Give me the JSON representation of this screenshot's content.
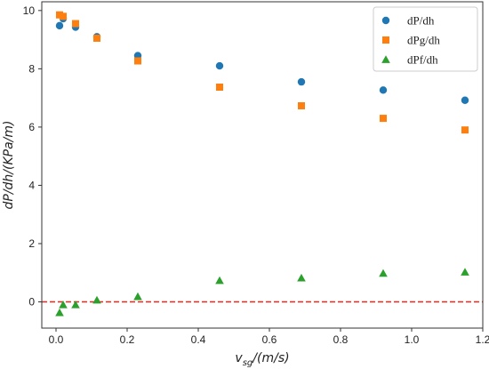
{
  "chart_data": {
    "type": "scatter",
    "title": "",
    "xlabel": "v_sg/(m/s)",
    "xlabel_main": "v",
    "xlabel_sub": "sg",
    "xlabel_rest": "/(m/s)",
    "ylabel": "dP/dh/(KPa/m)",
    "xlim": [
      -0.04,
      1.2
    ],
    "ylim": [
      -0.9,
      10.3
    ],
    "x_ticks": [
      0.0,
      0.2,
      0.4,
      0.6,
      0.8,
      1.0,
      1.2
    ],
    "x_tick_labels": [
      "0.0",
      "0.2",
      "0.4",
      "0.6",
      "0.8",
      "1.0",
      "1.2"
    ],
    "y_ticks": [
      0,
      2,
      4,
      6,
      8,
      10
    ],
    "y_tick_labels": [
      "0",
      "2",
      "4",
      "6",
      "8",
      "10"
    ],
    "grid": false,
    "legend_position": "top-right",
    "reference_line": {
      "y": 0,
      "style": "dashed",
      "color": "#e8281f"
    },
    "series": [
      {
        "name": "dP/dh",
        "marker": "circle",
        "color": "#1f77b4",
        "points": [
          {
            "x": 0.01,
            "y": 9.48
          },
          {
            "x": 0.02,
            "y": 9.72
          },
          {
            "x": 0.055,
            "y": 9.43
          },
          {
            "x": 0.115,
            "y": 9.1
          },
          {
            "x": 0.23,
            "y": 8.45
          },
          {
            "x": 0.46,
            "y": 8.1
          },
          {
            "x": 0.69,
            "y": 7.55
          },
          {
            "x": 0.92,
            "y": 7.27
          },
          {
            "x": 1.15,
            "y": 6.92
          }
        ]
      },
      {
        "name": "dPg/dh",
        "marker": "square",
        "color": "#ff7f0e",
        "points": [
          {
            "x": 0.01,
            "y": 9.85
          },
          {
            "x": 0.02,
            "y": 9.8
          },
          {
            "x": 0.055,
            "y": 9.55
          },
          {
            "x": 0.115,
            "y": 9.05
          },
          {
            "x": 0.23,
            "y": 8.27
          },
          {
            "x": 0.46,
            "y": 7.37
          },
          {
            "x": 0.69,
            "y": 6.73
          },
          {
            "x": 0.92,
            "y": 6.3
          },
          {
            "x": 1.15,
            "y": 5.9
          }
        ]
      },
      {
        "name": "dPf/dh",
        "marker": "triangle",
        "color": "#2ca02c",
        "points": [
          {
            "x": 0.01,
            "y": -0.37
          },
          {
            "x": 0.02,
            "y": -0.1
          },
          {
            "x": 0.055,
            "y": -0.1
          },
          {
            "x": 0.115,
            "y": 0.06
          },
          {
            "x": 0.23,
            "y": 0.18
          },
          {
            "x": 0.46,
            "y": 0.73
          },
          {
            "x": 0.69,
            "y": 0.82
          },
          {
            "x": 0.92,
            "y": 0.98
          },
          {
            "x": 1.15,
            "y": 1.02
          }
        ]
      }
    ]
  }
}
